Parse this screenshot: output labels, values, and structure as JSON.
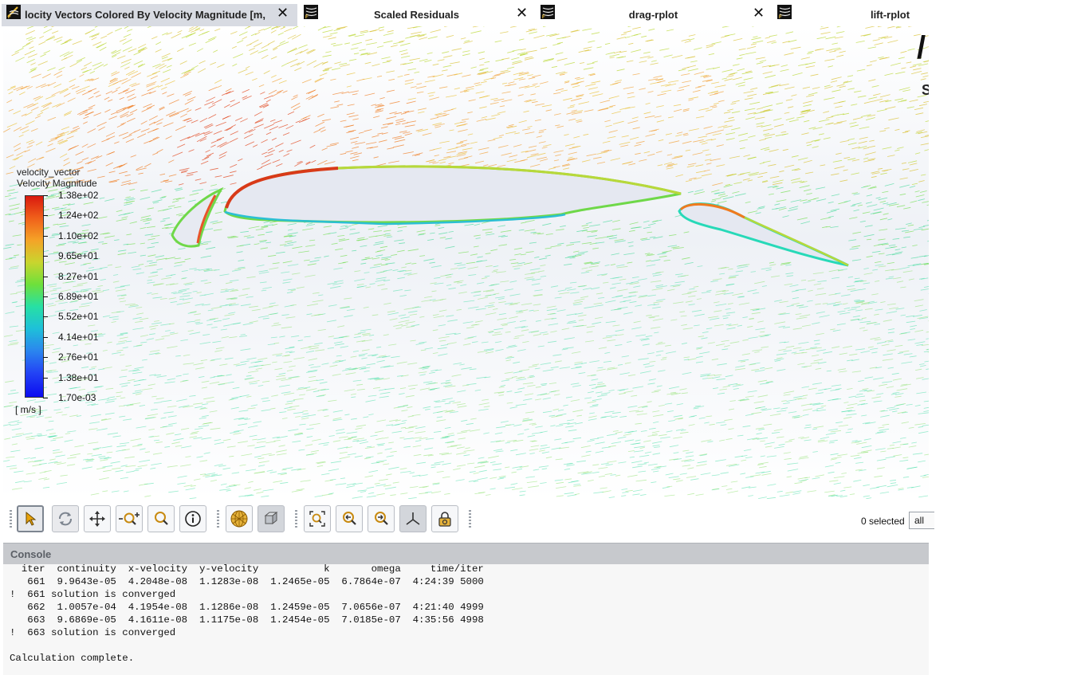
{
  "tabs": [
    {
      "label": "locity Vectors Colored By Velocity Magnitude [m,",
      "icon": "fluent-app-icon",
      "active": true,
      "closable": true
    },
    {
      "label": "Scaled Residuals",
      "icon": "fluent-app-icon",
      "active": false,
      "closable": true
    },
    {
      "label": "drag-rplot",
      "icon": "fluent-app-icon",
      "active": false,
      "closable": true
    },
    {
      "label": "lift-rplot",
      "icon": "fluent-app-icon",
      "active": false,
      "closable": false
    }
  ],
  "close_glyph": "✕",
  "viewport": {
    "corner_logo": "/",
    "corner_text": "S",
    "legend": {
      "title_line1": "velocity_vector",
      "title_line2": "Velocity Magnitude",
      "ticks": [
        "1.38e+02",
        "1.24e+02",
        "1.10e+02",
        "9.65e+01",
        "8.27e+01",
        "6.89e+01",
        "5.52e+01",
        "4.14e+01",
        "2.76e+01",
        "1.38e+01",
        "1.70e-03"
      ],
      "units": "[ m/s ]",
      "colors": [
        "#d9190f",
        "#f0601a",
        "#f5a327",
        "#c9d52e",
        "#6ee03b",
        "#27e0a4",
        "#1ec0d9",
        "#2b86ee",
        "#2344f5",
        "#0b0bf0"
      ]
    }
  },
  "toolbar": {
    "groups": [
      [
        "pointer-icon",
        "rotate-icon",
        "pan-icon",
        "zoom-in-out-icon",
        "zoom-box-icon",
        "probe-info-icon"
      ],
      [
        "mesh-sphere-icon",
        "view-cube-icon"
      ],
      [
        "fit-to-window-icon",
        "zoom-previous-icon",
        "zoom-next-icon",
        "axes-icon",
        "lock-view-icon"
      ]
    ],
    "selected_count": "0 selected",
    "filter_value": "all"
  },
  "console": {
    "title": "Console",
    "lines": [
      "  iter  continuity  x-velocity  y-velocity           k       omega     time/iter",
      "   661  9.9643e-05  4.2048e-08  1.1283e-08  1.2465e-05  6.7864e-07  4:24:39 5000",
      "!  661 solution is converged",
      "   662  1.0057e-04  4.1954e-08  1.1286e-08  1.2459e-05  7.0656e-07  4:21:40 4999",
      "   663  9.6869e-05  4.1611e-08  1.1175e-08  1.2454e-05  7.0185e-07  4:35:56 4998",
      "!  663 solution is converged",
      "",
      "Calculation complete."
    ]
  }
}
